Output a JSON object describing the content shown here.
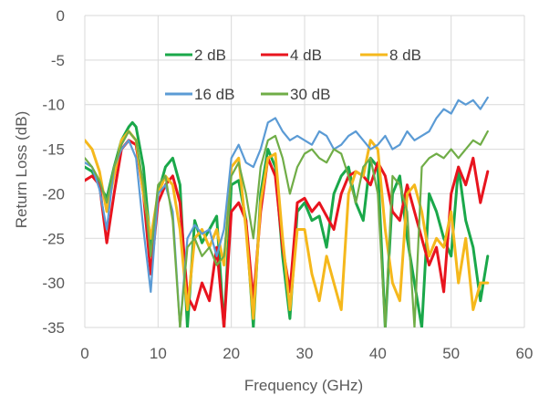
{
  "chart_data": {
    "type": "line",
    "title": "",
    "xlabel": "Frequency (GHz)",
    "ylabel": "Return Loss (dB)",
    "xlim": [
      0,
      60
    ],
    "ylim": [
      -35,
      0
    ],
    "xticks": [
      0,
      10,
      20,
      30,
      40,
      50,
      60
    ],
    "yticks": [
      0,
      -5,
      -10,
      -15,
      -20,
      -25,
      -30,
      -35
    ],
    "grid": true,
    "legend": "top-inside",
    "series": [
      {
        "name": "2 dB",
        "color": "#1aa84a",
        "x": [
          0,
          1,
          2,
          3,
          4,
          5,
          6,
          6.5,
          7,
          8,
          9,
          10,
          11,
          12,
          13,
          14,
          15,
          16,
          17,
          18,
          19,
          20,
          21,
          22,
          23,
          24,
          25,
          26,
          27,
          28,
          29,
          30,
          31,
          32,
          33,
          34,
          35,
          36,
          37,
          38,
          39,
          40,
          41,
          42,
          43,
          44,
          45,
          46,
          47,
          48,
          49,
          50,
          51,
          52,
          53,
          54,
          55
        ],
        "y": [
          -17,
          -17.5,
          -19,
          -20.5,
          -17,
          -14,
          -12.5,
          -12,
          -12.5,
          -17,
          -26,
          -20,
          -17,
          -16,
          -19,
          -35,
          -23,
          -25.5,
          -24,
          -22.5,
          -35,
          -19,
          -18.5,
          -23,
          -35,
          -20,
          -15,
          -17,
          -27,
          -34,
          -22,
          -21,
          -23,
          -22.5,
          -26,
          -20,
          -18,
          -17,
          -21,
          -23,
          -16,
          -17,
          -35,
          -20,
          -18,
          -25,
          -30,
          -35,
          -20,
          -22,
          -25,
          -27,
          -17,
          -23,
          -26,
          -32,
          -27
        ]
      },
      {
        "name": "4 dB",
        "color": "#e8141e",
        "x": [
          0,
          1,
          2,
          3,
          4,
          5,
          6,
          7,
          8,
          9,
          10,
          11,
          12,
          13,
          14,
          15,
          16,
          17,
          18,
          19,
          20,
          21,
          22,
          23,
          24,
          25,
          26,
          27,
          28,
          29,
          30,
          31,
          32,
          33,
          34,
          35,
          36,
          37,
          38,
          39,
          40,
          41,
          42,
          43,
          44,
          45,
          46,
          47,
          48,
          49,
          50,
          51,
          52,
          53,
          54,
          55
        ],
        "y": [
          -18.5,
          -18,
          -19,
          -25.5,
          -20,
          -15,
          -14,
          -14.5,
          -20,
          -29,
          -21,
          -19,
          -18,
          -21,
          -31.5,
          -33,
          -30,
          -32,
          -26,
          -35,
          -22,
          -21,
          -23,
          -32,
          -22,
          -16,
          -18,
          -26,
          -31,
          -21,
          -20.5,
          -22,
          -21,
          -22.5,
          -24,
          -20,
          -18,
          -17.5,
          -18,
          -19,
          -16.5,
          -18,
          -22,
          -23,
          -19,
          -22,
          -25,
          -28,
          -26,
          -31,
          -20,
          -17,
          -19,
          -16,
          -21,
          -17.5
        ]
      },
      {
        "name": "8 dB",
        "color": "#f5b81c",
        "x": [
          0,
          1,
          2,
          3,
          4,
          5,
          6,
          7,
          8,
          9,
          10,
          11,
          12,
          13,
          14,
          15,
          16,
          17,
          18,
          19,
          20,
          21,
          22,
          23,
          24,
          25,
          26,
          27,
          28,
          29,
          30,
          31,
          32,
          33,
          34,
          35,
          36,
          37,
          38,
          39,
          40,
          41,
          42,
          43,
          44,
          45,
          46,
          47,
          48,
          49,
          50,
          51,
          52,
          53,
          54,
          55
        ],
        "y": [
          -14,
          -15,
          -17.5,
          -22,
          -18,
          -14,
          -13,
          -14,
          -20,
          -25,
          -20,
          -18,
          -19,
          -24,
          -33,
          -25,
          -24,
          -26,
          -24,
          -28,
          -17,
          -16,
          -24,
          -34,
          -21,
          -16,
          -15.5,
          -25,
          -33,
          -24,
          -24,
          -29,
          -32,
          -27,
          -30,
          -33,
          -20,
          -17.5,
          -18,
          -14,
          -15,
          -24,
          -30,
          -32,
          -20,
          -19,
          -22,
          -27,
          -25,
          -26,
          -22,
          -30,
          -25,
          -33,
          -30,
          -30
        ]
      },
      {
        "name": "16 dB",
        "color": "#5b9bd5",
        "x": [
          0,
          1,
          2,
          3,
          4,
          5,
          6,
          7,
          8,
          9,
          10,
          11,
          12,
          13,
          14,
          15,
          16,
          17,
          18,
          19,
          20,
          21,
          22,
          23,
          24,
          25,
          26,
          27,
          28,
          29,
          30,
          31,
          32,
          33,
          34,
          35,
          36,
          37,
          38,
          39,
          40,
          41,
          42,
          43,
          44,
          45,
          46,
          47,
          48,
          49,
          50,
          51,
          52,
          53,
          54,
          55
        ],
        "y": [
          -16.5,
          -17,
          -19.5,
          -24,
          -17,
          -15,
          -14,
          -16,
          -24,
          -31,
          -20,
          -19,
          -22,
          -35,
          -25,
          -23.5,
          -24.5,
          -24,
          -27,
          -24,
          -16,
          -14.5,
          -16.5,
          -17,
          -15,
          -12,
          -11.5,
          -13,
          -14,
          -13.5,
          -14,
          -14.5,
          -13,
          -13.5,
          -15,
          -14.5,
          -13.5,
          -13,
          -14,
          -15,
          -14.5,
          -13.5,
          -15,
          -14.5,
          -13,
          -14,
          -13.5,
          -13,
          -11.5,
          -10.5,
          -11,
          -9.5,
          -10,
          -9.5,
          -10.5,
          -9.2
        ]
      },
      {
        "name": "30 dB",
        "color": "#70ad47",
        "x": [
          0,
          1,
          2,
          3,
          4,
          5,
          6,
          7,
          8,
          9,
          10,
          11,
          12,
          13,
          14,
          15,
          16,
          17,
          18,
          19,
          20,
          21,
          22,
          23,
          24,
          25,
          26,
          27,
          28,
          29,
          30,
          31,
          32,
          33,
          34,
          35,
          36,
          37,
          38,
          39,
          40,
          41,
          42,
          43,
          44,
          45,
          46,
          47,
          48,
          49,
          50,
          51,
          52,
          53,
          54,
          55
        ],
        "y": [
          -16,
          -17,
          -18.5,
          -21,
          -17,
          -14.5,
          -13,
          -14,
          -19,
          -27,
          -19,
          -18,
          -23,
          -35,
          -26,
          -25,
          -27,
          -26,
          -28,
          -27,
          -18,
          -16.5,
          -20,
          -25,
          -17,
          -14,
          -13.5,
          -16,
          -20,
          -17,
          -15.5,
          -15,
          -16,
          -16.5,
          -15,
          -15.5,
          -18,
          -21,
          -17,
          -16,
          -20,
          -35,
          -18,
          -19,
          -22,
          -35,
          -17,
          -16,
          -15.5,
          -16,
          -15,
          -16,
          -15,
          -14,
          -14.5,
          -13
        ]
      }
    ]
  }
}
